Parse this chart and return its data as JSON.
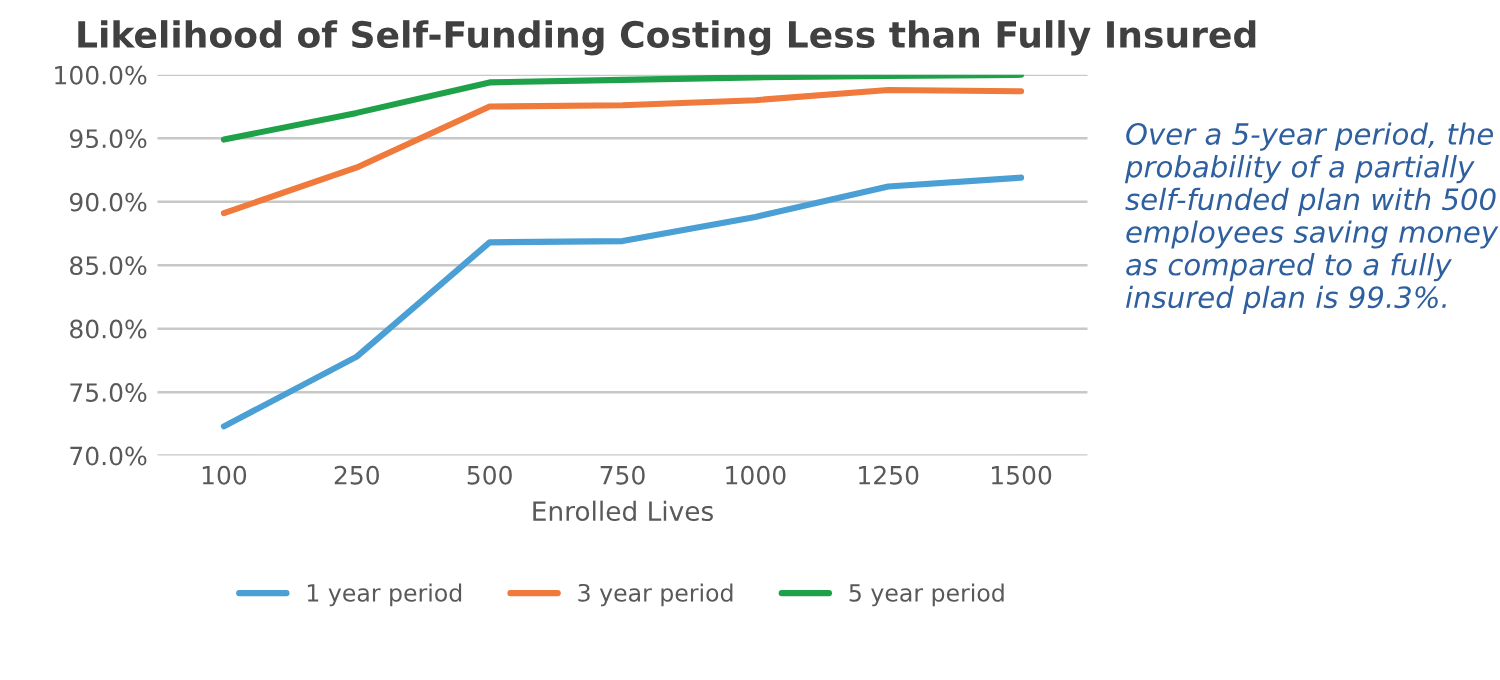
{
  "chart_data": {
    "type": "line",
    "title": "Likelihood of Self-Funding Costing Less than Fully Insured",
    "xlabel": "Enrolled Lives",
    "categories": [
      "100",
      "250",
      "500",
      "750",
      "1000",
      "1250",
      "1500"
    ],
    "series": [
      {
        "name": "1 year period",
        "color": "#4a9fd4",
        "values": [
          72.3,
          77.8,
          86.8,
          86.9,
          88.8,
          91.2,
          91.9
        ]
      },
      {
        "name": "3 year period",
        "color": "#f07a3c",
        "values": [
          89.1,
          92.7,
          97.5,
          97.6,
          98.0,
          98.8,
          98.7
        ]
      },
      {
        "name": "5 year period",
        "color": "#1fa14a",
        "values": [
          94.9,
          97.0,
          99.4,
          99.6,
          99.8,
          99.9,
          100.0
        ]
      }
    ],
    "ylim": [
      70,
      100
    ],
    "yticks": [
      {
        "value": 70,
        "label": "70.0%"
      },
      {
        "value": 75,
        "label": "75.0%"
      },
      {
        "value": 80,
        "label": "80.0%"
      },
      {
        "value": 85,
        "label": "85.0%"
      },
      {
        "value": 90,
        "label": "90.0%"
      },
      {
        "value": 95,
        "label": "95.0%"
      },
      {
        "value": 100,
        "label": "100.0%"
      }
    ],
    "grid": "y",
    "legend": "bottom",
    "marker": "none",
    "line_style": "solid",
    "annotations": [
      "Over a 5-year period, the probability of a partially self-funded plan with 500 employees saving money as compared to a fully insured plan is 99.3%."
    ]
  }
}
